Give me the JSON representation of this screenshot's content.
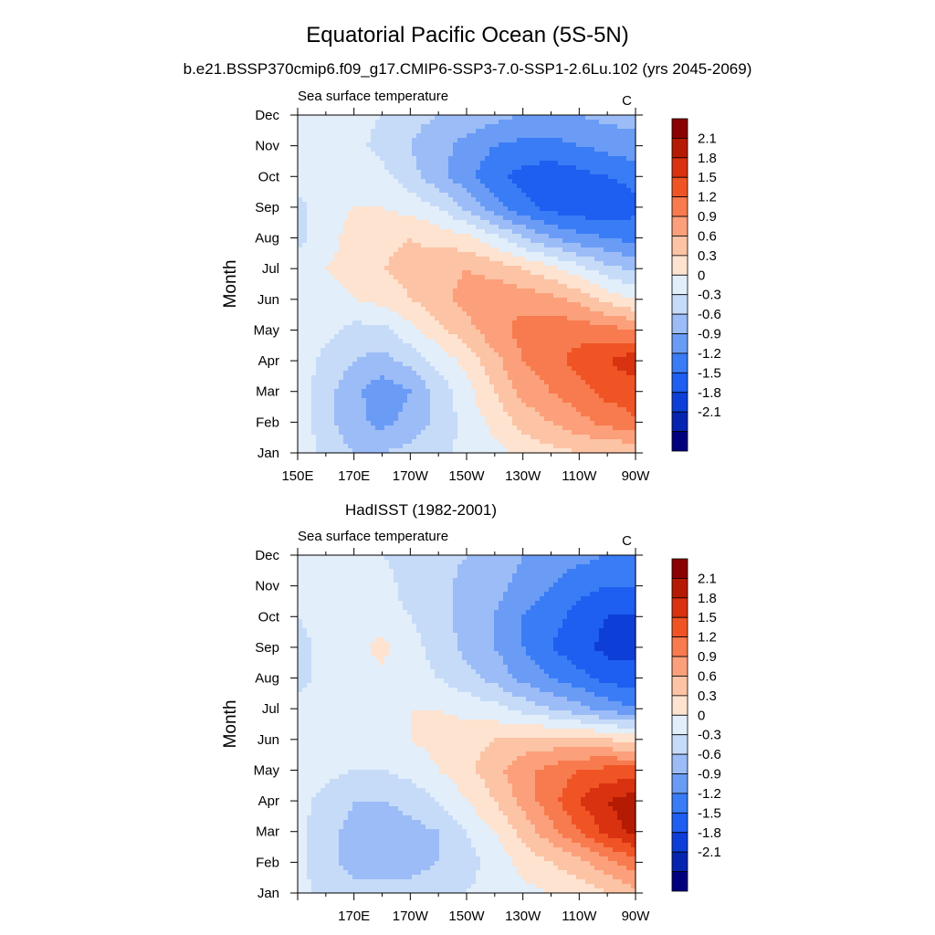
{
  "figure": {
    "title": "Equatorial Pacific Ocean (5S-5N)",
    "subtitle": "b.e21.BSSP370cmip6.f09_g17.CMIP6-SSP3-7.0-SSP1-2.6Lu.102 (yrs 2045-2069)"
  },
  "colors": {
    "bins": [
      "#00007f",
      "#0524b0",
      "#0d3fd8",
      "#1e5ef0",
      "#3a7cf5",
      "#6a9cf6",
      "#9cbcf7",
      "#c6dbf8",
      "#e2eefa",
      "#fde3d0",
      "#fcc3a5",
      "#fba07a",
      "#f77b4e",
      "#f05425",
      "#d93210",
      "#b51a02",
      "#8b0000"
    ],
    "levels": [
      -2.1,
      -1.8,
      -1.5,
      -1.2,
      -0.9,
      -0.6,
      -0.3,
      0,
      0.3,
      0.6,
      0.9,
      1.2,
      1.5,
      1.8,
      2.1
    ]
  },
  "chart_data": [
    {
      "type": "heatmap",
      "panel_title": "",
      "left_string": "Sea surface temperature",
      "right_string": "C",
      "ylabel": "Month",
      "xlabel": "",
      "y_ticks": [
        "Jan",
        "Feb",
        "Mar",
        "Apr",
        "May",
        "Jun",
        "Jul",
        "Aug",
        "Sep",
        "Oct",
        "Nov",
        "Dec"
      ],
      "x_ticks": [
        "150E",
        "170E",
        "170W",
        "150W",
        "130W",
        "110W",
        "90W"
      ],
      "x_tick_lon": [
        150,
        170,
        190,
        210,
        230,
        250,
        270
      ],
      "x_range": [
        150,
        270
      ],
      "colorbar_labels": [
        "2.1",
        "1.8",
        "1.5",
        "1.2",
        "0.9",
        "0.6",
        "0.3",
        "0",
        "-0.3",
        "-0.6",
        "-0.9",
        "-1.2",
        "-1.5",
        "-1.8",
        "-2.1"
      ],
      "lon": [
        150,
        160,
        170,
        180,
        190,
        200,
        210,
        220,
        230,
        240,
        250,
        260,
        270
      ],
      "months": [
        "Jan",
        "Feb",
        "Mar",
        "Apr",
        "May",
        "Jun",
        "Jul",
        "Aug",
        "Sep",
        "Oct",
        "Nov",
        "Dec"
      ],
      "values": [
        [
          0.2,
          -0.1,
          -0.3,
          -0.3,
          -0.2,
          -0.1,
          0.1,
          0.2,
          0.4,
          0.5,
          0.6,
          0.6,
          0.6
        ],
        [
          0.2,
          -0.2,
          -0.5,
          -0.7,
          -0.5,
          -0.2,
          0.1,
          0.4,
          0.7,
          0.9,
          1.1,
          1.3,
          1.5
        ],
        [
          0.2,
          -0.2,
          -0.5,
          -0.8,
          -0.6,
          -0.2,
          0.2,
          0.6,
          1.0,
          1.2,
          1.4,
          1.6,
          1.6
        ],
        [
          0.2,
          -0.1,
          -0.3,
          -0.4,
          -0.2,
          0.1,
          0.4,
          0.8,
          1.2,
          1.4,
          1.6,
          1.8,
          2.0
        ],
        [
          0.2,
          0.1,
          -0.1,
          -0.1,
          0.2,
          0.5,
          0.8,
          1.1,
          1.3,
          1.4,
          1.4,
          1.3,
          1.2
        ],
        [
          0.2,
          0.2,
          0.3,
          0.4,
          0.6,
          0.8,
          1.0,
          1.1,
          1.1,
          1.0,
          0.8,
          0.5,
          0.3
        ],
        [
          0.2,
          0.3,
          0.4,
          0.6,
          0.7,
          0.8,
          0.9,
          0.8,
          0.6,
          0.4,
          0.1,
          -0.2,
          -0.4
        ],
        [
          -0.1,
          0.2,
          0.4,
          0.5,
          0.6,
          0.5,
          0.4,
          0.1,
          -0.3,
          -0.6,
          -0.8,
          -0.9,
          -1.0
        ],
        [
          -0.1,
          0.2,
          0.3,
          0.3,
          0.2,
          0.0,
          -0.4,
          -0.8,
          -1.1,
          -1.3,
          -1.4,
          -1.4,
          -1.3
        ],
        [
          0.2,
          0.3,
          0.2,
          0.1,
          -0.2,
          -0.5,
          -0.8,
          -1.1,
          -1.3,
          -1.4,
          -1.3,
          -1.2,
          -1.1
        ],
        [
          0.2,
          0.2,
          0.1,
          -0.1,
          -0.3,
          -0.5,
          -0.7,
          -0.9,
          -1.0,
          -1.0,
          -0.9,
          -0.8,
          -0.7
        ],
        [
          0.2,
          0.2,
          0.1,
          0.0,
          -0.2,
          -0.3,
          -0.4,
          -0.5,
          -0.6,
          -0.6,
          -0.6,
          -0.5,
          -0.5
        ]
      ]
    },
    {
      "type": "heatmap",
      "panel_title": "HadISST (1982-2001)",
      "left_string": "Sea surface temperature",
      "right_string": "C",
      "ylabel": "Month",
      "xlabel": "",
      "y_ticks": [
        "Jan",
        "Feb",
        "Mar",
        "Apr",
        "May",
        "Jun",
        "Jul",
        "Aug",
        "Sep",
        "Oct",
        "Nov",
        "Dec"
      ],
      "x_ticks": [
        "170E",
        "170W",
        "150W",
        "130W",
        "110W",
        "90W"
      ],
      "x_tick_lon": [
        170,
        190,
        210,
        230,
        250,
        270
      ],
      "x_range": [
        150,
        270
      ],
      "colorbar_labels": [
        "2.1",
        "1.8",
        "1.5",
        "1.2",
        "0.9",
        "0.6",
        "0.3",
        "0",
        "-0.3",
        "-0.6",
        "-0.9",
        "-1.2",
        "-1.5",
        "-1.8",
        "-2.1"
      ],
      "lon": [
        150,
        160,
        170,
        180,
        190,
        200,
        210,
        220,
        230,
        240,
        250,
        260,
        270
      ],
      "months": [
        "Jan",
        "Feb",
        "Mar",
        "Apr",
        "May",
        "Jun",
        "Jul",
        "Aug",
        "Sep",
        "Oct",
        "Nov",
        "Dec"
      ],
      "values": [
        [
          0.1,
          -0.1,
          -0.2,
          -0.2,
          -0.2,
          -0.1,
          0.0,
          0.1,
          0.2,
          0.3,
          0.4,
          0.6,
          0.8
        ],
        [
          0.1,
          -0.2,
          -0.4,
          -0.4,
          -0.4,
          -0.3,
          -0.1,
          0.1,
          0.4,
          0.6,
          0.8,
          1.1,
          1.4
        ],
        [
          0.1,
          -0.2,
          -0.4,
          -0.5,
          -0.4,
          -0.3,
          0.0,
          0.3,
          0.7,
          1.1,
          1.5,
          1.9,
          2.2
        ],
        [
          0.1,
          -0.1,
          -0.3,
          -0.3,
          -0.2,
          0.0,
          0.3,
          0.6,
          1.0,
          1.4,
          1.8,
          2.1,
          2.3
        ],
        [
          0.1,
          0.1,
          0.0,
          0.0,
          0.1,
          0.3,
          0.5,
          0.8,
          1.1,
          1.3,
          1.5,
          1.6,
          1.6
        ],
        [
          0.2,
          0.2,
          0.2,
          0.2,
          0.3,
          0.4,
          0.5,
          0.6,
          0.7,
          0.7,
          0.7,
          0.6,
          0.5
        ],
        [
          0.1,
          0.2,
          0.2,
          0.3,
          0.3,
          0.3,
          0.2,
          0.1,
          -0.1,
          -0.3,
          -0.5,
          -0.7,
          -0.9
        ],
        [
          -0.1,
          0.1,
          0.2,
          0.2,
          0.1,
          0.0,
          -0.2,
          -0.4,
          -0.7,
          -0.9,
          -1.1,
          -1.3,
          -1.4
        ],
        [
          -0.1,
          0.1,
          0.2,
          0.4,
          0.1,
          -0.1,
          -0.4,
          -0.6,
          -0.9,
          -1.2,
          -1.4,
          -1.6,
          -1.6
        ],
        [
          0.0,
          0.1,
          0.2,
          0.1,
          0.0,
          -0.2,
          -0.4,
          -0.6,
          -0.9,
          -1.1,
          -1.3,
          -1.5,
          -1.5
        ],
        [
          0.1,
          0.2,
          0.1,
          0.1,
          -0.1,
          -0.2,
          -0.4,
          -0.5,
          -0.7,
          -0.9,
          -1.1,
          -1.2,
          -1.2
        ],
        [
          0.1,
          0.2,
          0.1,
          0.0,
          -0.1,
          -0.2,
          -0.3,
          -0.4,
          -0.6,
          -0.7,
          -0.8,
          -0.9,
          -0.9
        ]
      ]
    }
  ]
}
